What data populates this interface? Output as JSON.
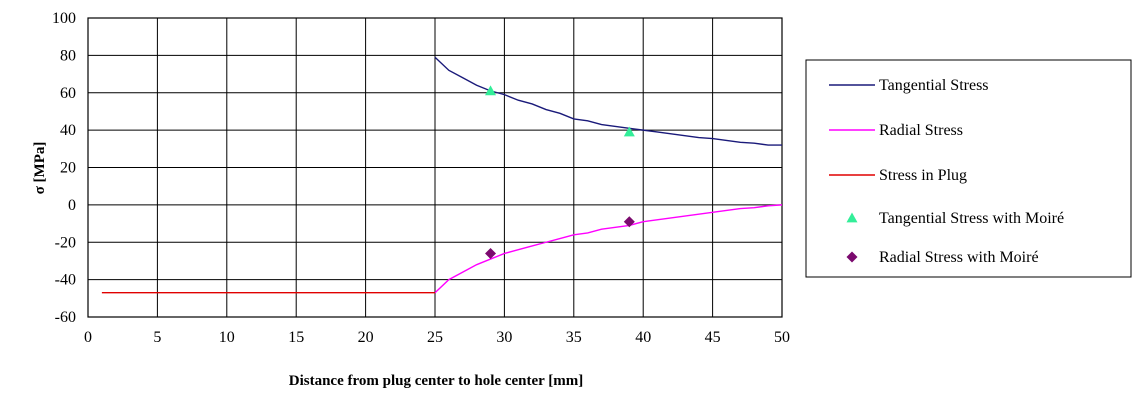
{
  "chart_data": {
    "type": "line",
    "xlabel": "Distance from plug center to hole center [mm]",
    "ylabel": "σ [MPa]",
    "xlim": [
      0,
      50
    ],
    "ylim": [
      -60,
      100
    ],
    "xticks": [
      0,
      5,
      10,
      15,
      20,
      25,
      30,
      35,
      40,
      45,
      50
    ],
    "yticks": [
      100,
      80,
      60,
      40,
      20,
      0,
      -20,
      -40,
      -60
    ],
    "grid": true,
    "legend_position": "right",
    "series": [
      {
        "name": "Tangential Stress",
        "kind": "line",
        "color": "#1a1a7a",
        "x": [
          25,
          26,
          27,
          28,
          29,
          30,
          31,
          32,
          33,
          34,
          35,
          36,
          37,
          38,
          39,
          40,
          41,
          42,
          43,
          44,
          45,
          46,
          47,
          48,
          49,
          50
        ],
        "y": [
          79,
          72,
          68,
          64,
          61,
          59,
          56,
          54,
          51,
          49,
          46,
          45,
          43,
          42,
          41,
          40,
          39,
          38,
          37,
          36,
          35.5,
          34.5,
          33.5,
          33,
          32,
          32
        ]
      },
      {
        "name": "Radial Stress",
        "kind": "line",
        "color": "#ff00ff",
        "x": [
          25,
          26,
          27,
          28,
          29,
          30,
          31,
          32,
          33,
          34,
          35,
          36,
          37,
          38,
          39,
          40,
          41,
          42,
          43,
          44,
          45,
          46,
          47,
          48,
          49,
          50
        ],
        "y": [
          -47,
          -40,
          -36,
          -32,
          -29,
          -26,
          -24,
          -22,
          -20,
          -18,
          -16,
          -15,
          -13,
          -12,
          -11,
          -9,
          -8,
          -7,
          -6,
          -5,
          -4,
          -3,
          -2,
          -1.5,
          -0.5,
          0
        ]
      },
      {
        "name": "Stress in Plug",
        "kind": "line",
        "color": "#e00000",
        "x": [
          1,
          25
        ],
        "y": [
          -47,
          -47
        ]
      },
      {
        "name": "Tangential Stress with Moiré",
        "kind": "marker",
        "marker": "triangle",
        "color": "#33ee99",
        "x": [
          29,
          39
        ],
        "y": [
          61,
          39
        ]
      },
      {
        "name": "Radial Stress with Moiré",
        "kind": "marker",
        "marker": "diamond",
        "color": "#7b0a6e",
        "x": [
          29,
          39
        ],
        "y": [
          -26,
          -9
        ]
      }
    ]
  }
}
